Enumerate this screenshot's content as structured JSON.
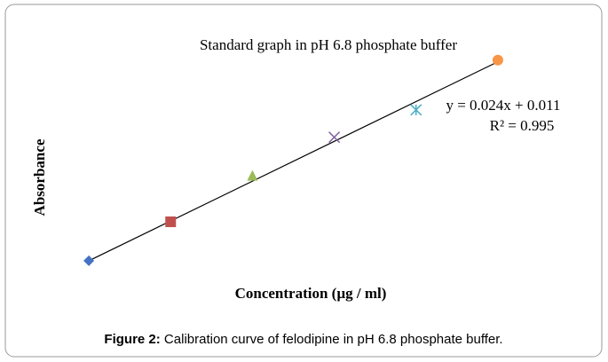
{
  "chart_data": {
    "type": "scatter",
    "title": "Standard graph in pH 6.8 phosphate buffer",
    "x_label": "Concentration (µg / ml)",
    "y_label": "Absorbance",
    "x": [
      2,
      4,
      6,
      8,
      10,
      12
    ],
    "values": [
      0.059,
      0.106,
      0.162,
      0.208,
      0.241,
      0.301
    ],
    "colors": [
      "#4472c4",
      "#c0504d",
      "#9bbb59",
      "#8064a2",
      "#4bacc6",
      "#f79646"
    ],
    "markers": [
      "diamond",
      "square",
      "triangle",
      "x",
      "star",
      "circle"
    ],
    "xlim": [
      1,
      13
    ],
    "ylim": [
      0.03,
      0.32
    ],
    "trendline": {
      "slope": 0.024,
      "intercept": 0.011,
      "color": "#000000"
    },
    "annotations": [
      "y = 0.024x + 0.011",
      "R² = 0.995"
    ],
    "caption": {
      "label": "Figure 2:",
      "text": " Calibration curve of felodipine in pH 6.8 phosphate buffer."
    }
  }
}
